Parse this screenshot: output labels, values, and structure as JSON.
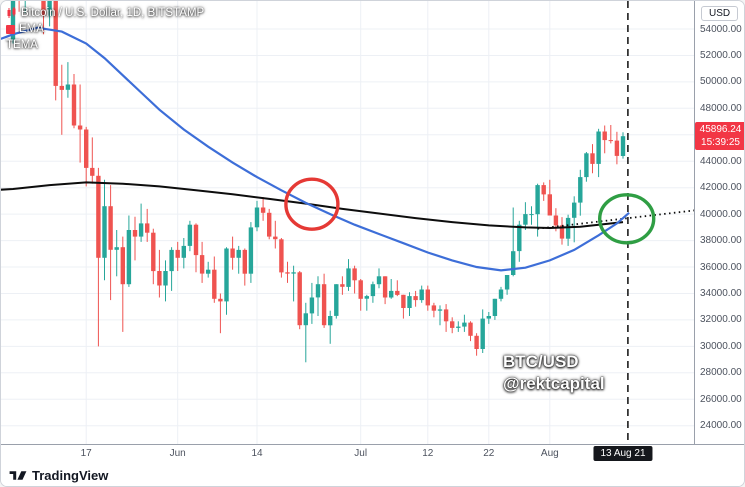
{
  "legend": {
    "symbol_title": "Bitcoin / U.S. Dollar, 1D, BITSTAMP",
    "indicators": [
      "EMA",
      "TEMA"
    ]
  },
  "watermark": {
    "line1": "BTC/USD",
    "line2": "@rektcapital"
  },
  "price_axis": {
    "unit_button": "USD",
    "tick_labels": [
      "54000.00",
      "52000.00",
      "50000.00",
      "48000.00",
      "46000.00",
      "44000.00",
      "42000.00",
      "40000.00",
      "38000.00",
      "36000.00",
      "34000.00",
      "32000.00",
      "30000.00",
      "28000.00",
      "26000.00",
      "24000.00"
    ],
    "last_price_tag": {
      "price": "45896.24",
      "countdown": "15:39:25"
    }
  },
  "time_axis": {
    "tick_labels": [
      {
        "text": "17",
        "index": 12
      },
      {
        "text": "Jun",
        "index": 27
      },
      {
        "text": "14",
        "index": 40
      },
      {
        "text": "Jul",
        "index": 57
      },
      {
        "text": "12",
        "index": 68
      },
      {
        "text": "22",
        "index": 78
      },
      {
        "text": "Aug",
        "index": 88
      }
    ],
    "crosshair_badge": {
      "text": "13 Aug 21",
      "index": 100
    }
  },
  "footer": {
    "brand": "TradingView"
  },
  "colors": {
    "candle_up": "#26a69a",
    "candle_down": "#ef5350",
    "ma_blue": "#3d6ed8",
    "ma_black": "#0d0d0d",
    "grid": "#edf0f5",
    "tag_bg": "#f23645",
    "circle_red": "#e53935",
    "circle_green": "#2f9e44"
  },
  "chart_data": {
    "type": "candlestick",
    "title": "Bitcoin / U.S. Dollar, 1D, BITSTAMP",
    "timeframe": "1D",
    "last_price": 45896.24,
    "countdown": "15:39:25",
    "ylim": [
      22620,
      56120
    ],
    "y_ticks": [
      54000,
      52000,
      50000,
      48000,
      46000,
      44000,
      42000,
      40000,
      38000,
      36000,
      34000,
      32000,
      30000,
      28000,
      26000,
      24000
    ],
    "x_tick_labels": [
      "17",
      "Jun",
      "14",
      "Jul",
      "12",
      "22",
      "Aug",
      "13 Aug 21"
    ],
    "candles": [
      [
        "2021-05-05",
        53200,
        57900,
        52900,
        57400
      ],
      [
        "2021-05-06",
        57400,
        58400,
        55300,
        56400
      ],
      [
        "2021-05-07",
        56400,
        58600,
        55200,
        57300
      ],
      [
        "2021-05-08",
        57300,
        59500,
        56900,
        58800
      ],
      [
        "2021-05-09",
        58800,
        59200,
        56200,
        58200
      ],
      [
        "2021-05-10",
        58200,
        59500,
        53600,
        55000
      ],
      [
        "2021-05-11",
        55000,
        56800,
        54200,
        56700
      ],
      [
        "2021-05-12",
        56700,
        58000,
        48600,
        49700
      ],
      [
        "2021-05-13",
        49700,
        51300,
        46000,
        49400
      ],
      [
        "2021-05-14",
        49400,
        51500,
        48800,
        49800
      ],
      [
        "2021-05-15",
        49800,
        50600,
        46500,
        46700
      ],
      [
        "2021-05-16",
        46700,
        49800,
        43900,
        46400
      ],
      [
        "2021-05-17",
        46400,
        46600,
        42100,
        43500
      ],
      [
        "2021-05-18",
        43500,
        45800,
        42300,
        42900
      ],
      [
        "2021-05-19",
        42900,
        43500,
        30000,
        36700
      ],
      [
        "2021-05-20",
        36700,
        42600,
        35000,
        40600
      ],
      [
        "2021-05-21",
        40600,
        42200,
        33500,
        37300
      ],
      [
        "2021-05-22",
        37300,
        38800,
        35300,
        37500
      ],
      [
        "2021-05-23",
        37500,
        38300,
        31100,
        34700
      ],
      [
        "2021-05-24",
        34700,
        39900,
        34500,
        38800
      ],
      [
        "2021-05-25",
        38800,
        39800,
        36500,
        38300
      ],
      [
        "2021-05-26",
        38300,
        40800,
        37900,
        39300
      ],
      [
        "2021-05-27",
        39300,
        40400,
        37900,
        38600
      ],
      [
        "2021-05-28",
        38600,
        38900,
        34700,
        35700
      ],
      [
        "2021-05-29",
        35700,
        37300,
        33700,
        34600
      ],
      [
        "2021-05-30",
        34600,
        36500,
        33400,
        35700
      ],
      [
        "2021-05-31",
        35700,
        37500,
        34200,
        37300
      ],
      [
        "2021-06-01",
        37300,
        37900,
        35700,
        36700
      ],
      [
        "2021-06-02",
        36700,
        38200,
        35900,
        37600
      ],
      [
        "2021-06-03",
        37600,
        39500,
        37200,
        39200
      ],
      [
        "2021-06-04",
        39200,
        39300,
        35600,
        36900
      ],
      [
        "2021-06-05",
        36900,
        37900,
        34800,
        35500
      ],
      [
        "2021-06-06",
        35500,
        36400,
        35200,
        35800
      ],
      [
        "2021-06-07",
        35800,
        36800,
        33300,
        33600
      ],
      [
        "2021-06-08",
        33600,
        34000,
        31000,
        33400
      ],
      [
        "2021-06-09",
        33400,
        37500,
        32400,
        37400
      ],
      [
        "2021-06-10",
        37400,
        38300,
        35800,
        36700
      ],
      [
        "2021-06-11",
        36700,
        37600,
        35500,
        37300
      ],
      [
        "2021-06-12",
        37300,
        37400,
        34600,
        35500
      ],
      [
        "2021-06-13",
        35500,
        39400,
        34800,
        39000
      ],
      [
        "2021-06-14",
        39000,
        41000,
        38700,
        40500
      ],
      [
        "2021-06-15",
        40500,
        41300,
        39500,
        40100
      ],
      [
        "2021-06-16",
        40100,
        40400,
        38100,
        38300
      ],
      [
        "2021-06-17",
        38300,
        39500,
        37400,
        38100
      ],
      [
        "2021-06-18",
        38100,
        38200,
        35200,
        35600
      ],
      [
        "2021-06-19",
        35600,
        36400,
        34800,
        35500
      ],
      [
        "2021-06-20",
        35500,
        36100,
        33400,
        35600
      ],
      [
        "2021-06-21",
        35600,
        35700,
        31300,
        31600
      ],
      [
        "2021-06-22",
        31600,
        33300,
        28800,
        32500
      ],
      [
        "2021-06-23",
        32500,
        34800,
        31700,
        33700
      ],
      [
        "2021-06-24",
        33700,
        35300,
        32300,
        34700
      ],
      [
        "2021-06-25",
        34700,
        35500,
        31400,
        31600
      ],
      [
        "2021-06-26",
        31600,
        32700,
        30200,
        32300
      ],
      [
        "2021-06-27",
        32300,
        34700,
        32100,
        34700
      ],
      [
        "2021-06-28",
        34700,
        35300,
        33900,
        34500
      ],
      [
        "2021-06-29",
        34500,
        36600,
        34200,
        35900
      ],
      [
        "2021-06-30",
        35900,
        36100,
        34000,
        35000
      ],
      [
        "2021-07-01",
        35000,
        35100,
        32700,
        33600
      ],
      [
        "2021-07-02",
        33600,
        33900,
        32700,
        33800
      ],
      [
        "2021-07-03",
        33800,
        34900,
        33300,
        34700
      ],
      [
        "2021-07-04",
        34700,
        35900,
        34400,
        35300
      ],
      [
        "2021-07-05",
        35300,
        35300,
        33200,
        33700
      ],
      [
        "2021-07-06",
        33700,
        35100,
        33600,
        34200
      ],
      [
        "2021-07-07",
        34200,
        35000,
        33800,
        33900
      ],
      [
        "2021-07-08",
        33900,
        33900,
        32100,
        32900
      ],
      [
        "2021-07-09",
        32900,
        34100,
        32300,
        33800
      ],
      [
        "2021-07-10",
        33800,
        34200,
        33000,
        33500
      ],
      [
        "2021-07-11",
        33500,
        34600,
        33300,
        34300
      ],
      [
        "2021-07-12",
        34300,
        34600,
        32700,
        33100
      ],
      [
        "2021-07-13",
        33100,
        33300,
        32200,
        32700
      ],
      [
        "2021-07-14",
        32700,
        33100,
        31600,
        32800
      ],
      [
        "2021-07-15",
        32800,
        33200,
        31100,
        31900
      ],
      [
        "2021-07-16",
        31900,
        32200,
        31000,
        31400
      ],
      [
        "2021-07-17",
        31400,
        31900,
        31100,
        31500
      ],
      [
        "2021-07-18",
        31500,
        32400,
        31100,
        31800
      ],
      [
        "2021-07-19",
        31800,
        31900,
        30400,
        30800
      ],
      [
        "2021-07-20",
        30800,
        31000,
        29300,
        29800
      ],
      [
        "2021-07-21",
        29800,
        32800,
        29500,
        32100
      ],
      [
        "2021-07-22",
        32100,
        32600,
        31700,
        32300
      ],
      [
        "2021-07-23",
        32300,
        33600,
        32000,
        33600
      ],
      [
        "2021-07-24",
        33600,
        34500,
        33400,
        34300
      ],
      [
        "2021-07-25",
        34300,
        35400,
        33900,
        35400
      ],
      [
        "2021-07-26",
        35400,
        40500,
        35300,
        37200
      ],
      [
        "2021-07-27",
        37200,
        39500,
        36400,
        39200
      ],
      [
        "2021-07-28",
        39200,
        40900,
        38800,
        40000
      ],
      [
        "2021-07-29",
        40000,
        40600,
        39200,
        40000
      ],
      [
        "2021-07-30",
        40000,
        42300,
        38300,
        42200
      ],
      [
        "2021-07-31",
        42200,
        42400,
        41000,
        41500
      ],
      [
        "2021-08-01",
        41500,
        42600,
        39900,
        39900
      ],
      [
        "2021-08-02",
        39900,
        40450,
        38700,
        39150
      ],
      [
        "2021-08-03",
        39150,
        39780,
        37700,
        38150
      ],
      [
        "2021-08-04",
        38150,
        39960,
        37600,
        39720
      ],
      [
        "2021-08-05",
        39720,
        41350,
        37870,
        40870
      ],
      [
        "2021-08-06",
        40870,
        43350,
        39880,
        42800
      ],
      [
        "2021-08-07",
        42800,
        44700,
        42450,
        44600
      ],
      [
        "2021-08-08",
        44600,
        45300,
        43100,
        43800
      ],
      [
        "2021-08-09",
        43800,
        46450,
        42800,
        46250
      ],
      [
        "2021-08-10",
        46250,
        46700,
        44600,
        45600
      ],
      [
        "2021-08-11",
        45600,
        46740,
        45350,
        45560
      ],
      [
        "2021-08-12",
        45560,
        46230,
        43770,
        44400
      ],
      [
        "2021-08-13",
        44400,
        46200,
        44200,
        45896
      ]
    ],
    "overlays": {
      "ema_blue": [
        [
          -2,
          53250
        ],
        [
          0,
          53600
        ],
        [
          4,
          54100
        ],
        [
          8,
          53800
        ],
        [
          12,
          52900
        ],
        [
          15,
          51800
        ],
        [
          18,
          50500
        ],
        [
          21,
          49200
        ],
        [
          24,
          47900
        ],
        [
          28,
          46400
        ],
        [
          32,
          45100
        ],
        [
          36,
          43900
        ],
        [
          40,
          42800
        ],
        [
          44,
          41800
        ],
        [
          48,
          40850
        ],
        [
          52,
          40000
        ],
        [
          56,
          39200
        ],
        [
          60,
          38500
        ],
        [
          64,
          37800
        ],
        [
          68,
          37100
        ],
        [
          72,
          36500
        ],
        [
          76,
          36000
        ],
        [
          80,
          35750
        ],
        [
          84,
          35950
        ],
        [
          88,
          36500
        ],
        [
          92,
          37300
        ],
        [
          96,
          38400
        ],
        [
          99,
          39300
        ],
        [
          101,
          40100
        ]
      ],
      "ma_black": [
        [
          -2,
          41850
        ],
        [
          0,
          41900
        ],
        [
          6,
          42200
        ],
        [
          12,
          42400
        ],
        [
          18,
          42300
        ],
        [
          24,
          42100
        ],
        [
          30,
          41800
        ],
        [
          36,
          41500
        ],
        [
          42,
          41150
        ],
        [
          48,
          40800
        ],
        [
          54,
          40400
        ],
        [
          60,
          40050
        ],
        [
          66,
          39700
        ],
        [
          72,
          39400
        ],
        [
          78,
          39150
        ],
        [
          84,
          39000
        ],
        [
          88,
          38950
        ],
        [
          93,
          39050
        ],
        [
          100,
          39400
        ]
      ],
      "projection_dotted": [
        [
          86,
          38900
        ],
        [
          113,
          40350
        ]
      ]
    },
    "annotations": {
      "red_circle": {
        "index": 49,
        "price": 40750
      },
      "green_circle": {
        "index": 100.6,
        "price": 39650
      },
      "dashed_vline_index": 100.8
    }
  }
}
